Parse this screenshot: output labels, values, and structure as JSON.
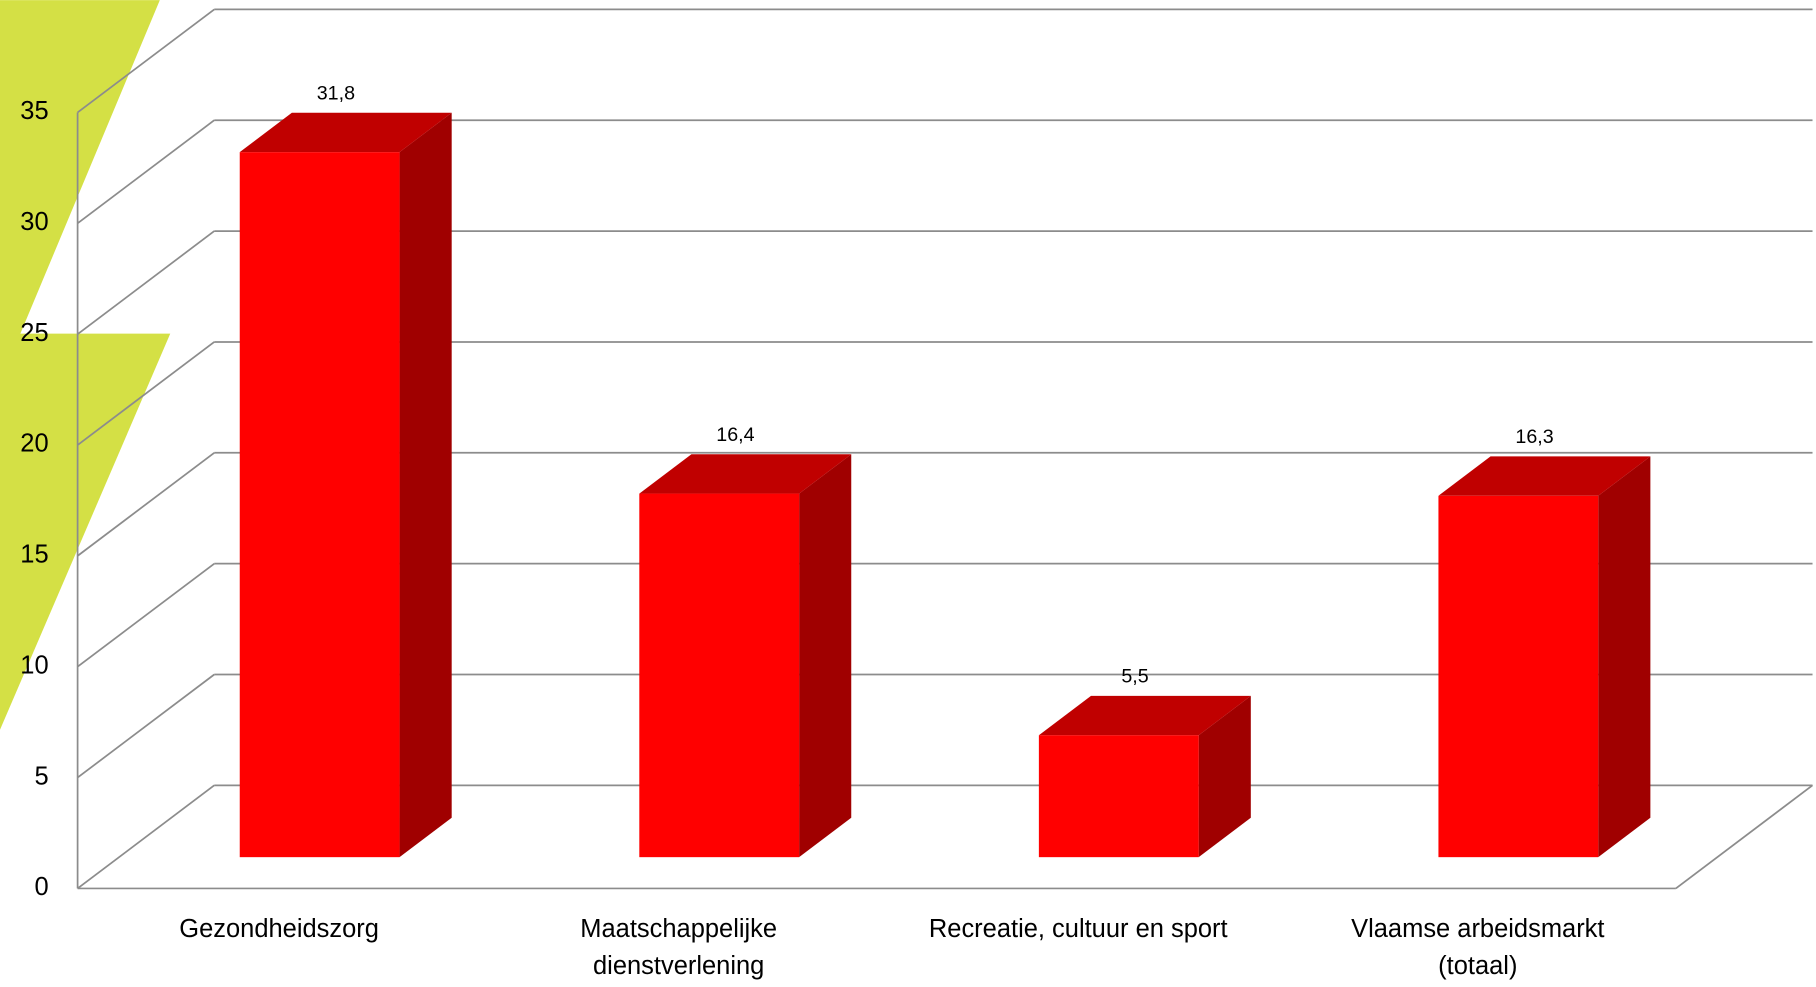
{
  "chart_data": {
    "type": "bar3d",
    "categories": [
      "Gezondheidszorg",
      "Maatschappelijke dienstverlening",
      "Recreatie, cultuur en sport",
      "Vlaamse arbeidsmarkt (totaal)"
    ],
    "values": [
      31.8,
      16.4,
      5.5,
      16.3
    ],
    "value_labels": [
      "31,8",
      "16,4",
      "5,5",
      "16,3"
    ],
    "color": "#ff0000",
    "ylim": [
      0,
      35
    ],
    "yticks": [
      0,
      5,
      10,
      15,
      20,
      25,
      30,
      35
    ],
    "grid": true
  }
}
